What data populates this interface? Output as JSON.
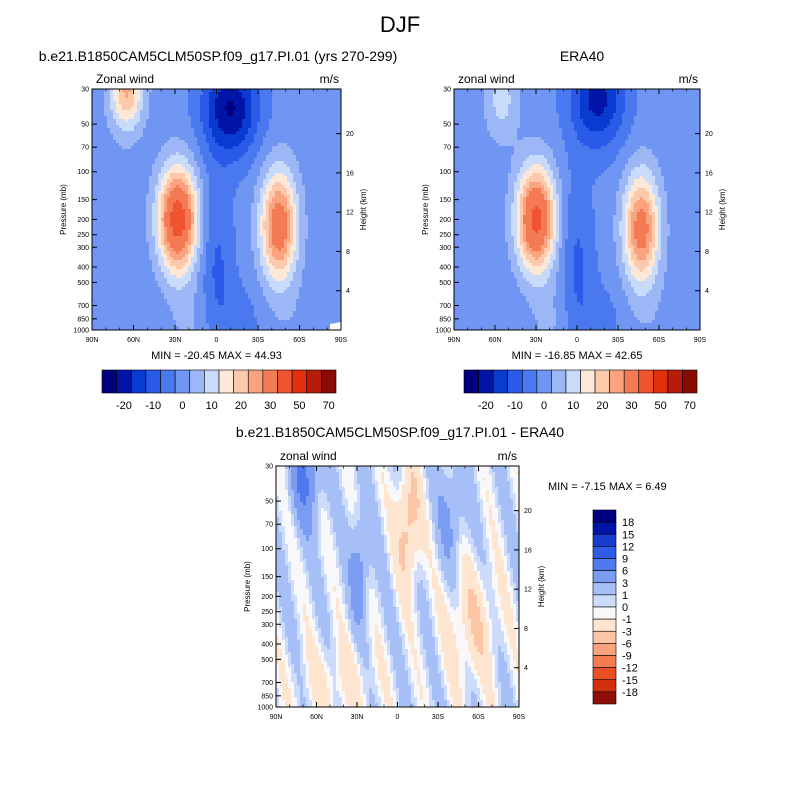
{
  "page": {
    "title": "DJF"
  },
  "chart_data": [
    {
      "type": "heatmap",
      "title": "b.e21.B1850CAM5CLM50SP.f09_g17.PI.01 (yrs 270-299)",
      "left_label": "Zonal wind",
      "units": "m/s",
      "ylabel": "Pressure (mb)",
      "y2label": "Height (km)",
      "stats": "MIN = -20.45  MAX =  44.93",
      "x_ticks": [
        "90N",
        "60N",
        "30N",
        "0",
        "30S",
        "60S",
        "90S"
      ],
      "y_ticks": [
        "30",
        "50",
        "70",
        "100",
        "150",
        "200",
        "250",
        "300",
        "400",
        "500",
        "700",
        "850",
        "1000"
      ],
      "height_ticks": [
        "20",
        "16",
        "12",
        "8",
        "4"
      ],
      "jets": [
        {
          "lat": 28,
          "p": 200,
          "max": 44.93
        },
        {
          "lat": -45,
          "p": 220,
          "max": 36
        },
        {
          "lat": 65,
          "p": 30,
          "max": 24
        }
      ],
      "easterly_min": {
        "lat": -10,
        "p": 40,
        "min": -20.45
      }
    },
    {
      "type": "heatmap",
      "title": "ERA40",
      "left_label": "zonal wind",
      "units": "m/s",
      "ylabel": "Pressure (mb)",
      "y2label": "Height (km)",
      "stats": "MIN = -16.85  MAX =  42.65",
      "x_ticks": [
        "90N",
        "60N",
        "30N",
        "0",
        "30S",
        "60S",
        "90S"
      ],
      "y_ticks": [
        "30",
        "50",
        "70",
        "100",
        "150",
        "200",
        "250",
        "300",
        "400",
        "500",
        "700",
        "850",
        "1000"
      ],
      "height_ticks": [
        "20",
        "16",
        "12",
        "8",
        "4"
      ],
      "jets": [
        {
          "lat": 30,
          "p": 200,
          "max": 42.65
        },
        {
          "lat": -47,
          "p": 230,
          "max": 34
        },
        {
          "lat": 55,
          "p": 35,
          "max": 10
        }
      ],
      "easterly_min": {
        "lat": -15,
        "p": 35,
        "min": -16.85
      }
    },
    {
      "type": "heatmap",
      "title": "b.e21.B1850CAM5CLM50SP.f09_g17.PI.01 - ERA40",
      "left_label": "zonal wind",
      "units": "m/s",
      "ylabel": "Pressure (mb)",
      "y2label": "Height (km)",
      "stats": "MIN =  -7.15  MAX =   6.49",
      "x_ticks": [
        "90N",
        "60N",
        "30N",
        "0",
        "30S",
        "60S",
        "90S"
      ],
      "y_ticks": [
        "30",
        "50",
        "70",
        "100",
        "150",
        "200",
        "250",
        "300",
        "400",
        "500",
        "700",
        "850",
        "1000"
      ],
      "height_ticks": [
        "20",
        "16",
        "12",
        "8",
        "4"
      ]
    }
  ],
  "colorbar_full": {
    "colors": [
      "#000080",
      "#0015a8",
      "#0a3bd0",
      "#2a5ae8",
      "#4a78ee",
      "#6f96f2",
      "#9cb6f6",
      "#c9dbfb",
      "#fde7d6",
      "#fcc9ac",
      "#f9a47f",
      "#f47a54",
      "#ef5330",
      "#e0300d",
      "#b71c08",
      "#8a0b04"
    ],
    "labels": [
      "-20",
      "-10",
      "0",
      "10",
      "20",
      "30",
      "50",
      "70"
    ]
  },
  "colorbar_diff": {
    "colors": [
      "#000080",
      "#0015a8",
      "#1a3ccf",
      "#2f5be8",
      "#4f7aef",
      "#7a9cf3",
      "#a6bff7",
      "#cddcfb",
      "#f8f8fb",
      "#fde5cf",
      "#fcc6a6",
      "#f9a27b",
      "#f47a52",
      "#ec4e26",
      "#d42f0c",
      "#900e05"
    ],
    "labels": [
      "18",
      "15",
      "12",
      "9",
      "6",
      "3",
      "1",
      "0",
      "-1",
      "-3",
      "-6",
      "-9",
      "-12",
      "-15",
      "-18"
    ]
  }
}
